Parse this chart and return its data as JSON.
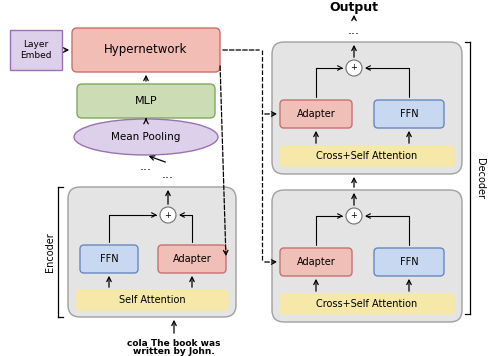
{
  "title": "Output",
  "input_text_line1": "cola The book was",
  "input_text_line2": "written by John.",
  "layer_embed_text": "Layer\nEmbed",
  "hypernetwork_text": "Hypernetwork",
  "mlp_text": "MLP",
  "mean_pooling_text": "Mean Pooling",
  "self_attention_text": "Self Attention",
  "encoder_ffn_text": "FFN",
  "encoder_adapter_text": "Adapter",
  "cross_self_attn_text": "Cross+Self Attention",
  "dec_ffn_text": "FFN",
  "dec_adapter_text": "Adapter",
  "decoder_label": "Decoder",
  "encoder_label": "Encoder",
  "colors": {
    "layer_embed_bg": "#ddd0ea",
    "layer_embed_border": "#9b72b0",
    "hypernetwork_bg": "#f2bdb5",
    "hypernetwork_border": "#c8706a",
    "mlp_bg": "#ccddb5",
    "mlp_border": "#80a860",
    "mean_pooling_bg": "#ddd0ea",
    "mean_pooling_border": "#9b72b0",
    "self_attention_bg": "#f5e8a8",
    "self_attention_border": "#d4b840",
    "ffn_bg": "#c8d8f0",
    "ffn_border": "#6888c0",
    "adapter_bg": "#f0c0b8",
    "adapter_border": "#c87070",
    "encoder_block_bg": "#e4e4e4",
    "encoder_block_border": "#a0a0a0",
    "decoder_block_bg": "#e4e4e4",
    "decoder_block_border": "#a0a0a0",
    "plus_circle_bg": "#ffffff",
    "plus_circle_border": "#707070"
  },
  "bg_color": "#ffffff"
}
